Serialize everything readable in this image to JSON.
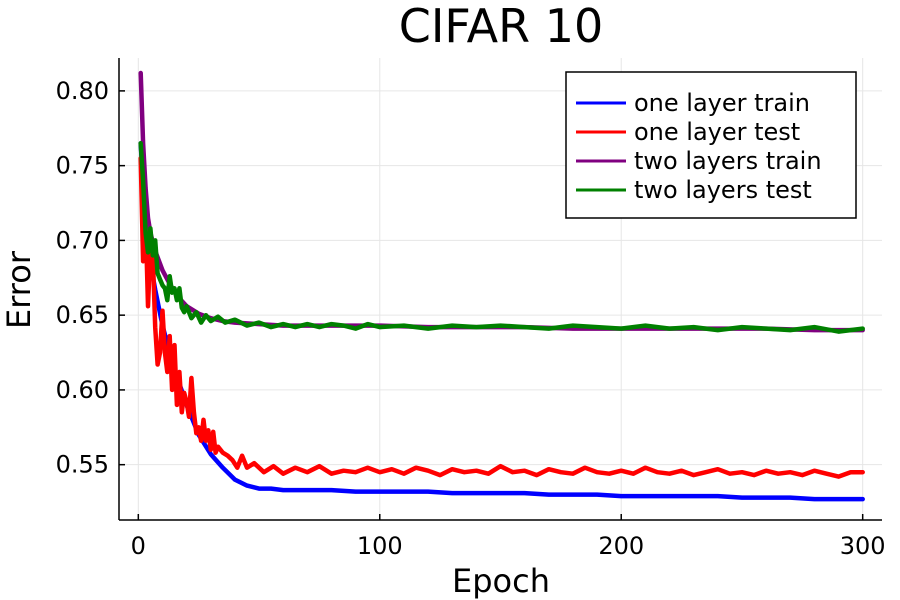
{
  "chart_data": {
    "type": "line",
    "title": "CIFAR 10",
    "xlabel": "Epoch",
    "ylabel": "Error",
    "xlim": [
      -8,
      308
    ],
    "ylim": [
      0.513,
      0.822
    ],
    "xticks": [
      0,
      100,
      200,
      300
    ],
    "yticks": [
      0.55,
      0.6,
      0.65,
      0.7,
      0.75,
      0.8
    ],
    "xtick_labels": [
      "0",
      "100",
      "200",
      "300"
    ],
    "ytick_labels": [
      "0.55",
      "0.60",
      "0.65",
      "0.70",
      "0.75",
      "0.80"
    ],
    "grid": true,
    "legend_position": "top-right",
    "series": [
      {
        "name": "one layer train",
        "color": "#0000ff",
        "x": [
          1,
          2,
          3,
          4,
          5,
          7,
          10,
          13,
          16,
          20,
          25,
          30,
          35,
          40,
          45,
          50,
          55,
          60,
          70,
          80,
          90,
          100,
          110,
          120,
          130,
          140,
          150,
          160,
          170,
          180,
          190,
          200,
          210,
          220,
          230,
          240,
          250,
          260,
          270,
          280,
          290,
          300
        ],
        "y": [
          0.765,
          0.735,
          0.712,
          0.698,
          0.685,
          0.667,
          0.643,
          0.625,
          0.609,
          0.59,
          0.57,
          0.557,
          0.548,
          0.54,
          0.536,
          0.534,
          0.534,
          0.533,
          0.533,
          0.533,
          0.532,
          0.532,
          0.532,
          0.532,
          0.531,
          0.531,
          0.531,
          0.531,
          0.53,
          0.53,
          0.53,
          0.529,
          0.529,
          0.529,
          0.529,
          0.529,
          0.528,
          0.528,
          0.528,
          0.527,
          0.527,
          0.527
        ]
      },
      {
        "name": "one layer test",
        "color": "#ff0000",
        "x": [
          1,
          2,
          3,
          4,
          5,
          6,
          7,
          8,
          9,
          10,
          11,
          12,
          13,
          14,
          15,
          16,
          17,
          18,
          19,
          20,
          21,
          22,
          23,
          24,
          25,
          26,
          27,
          28,
          29,
          30,
          31,
          32,
          33,
          35,
          37,
          39,
          41,
          43,
          45,
          48,
          52,
          56,
          60,
          65,
          70,
          75,
          80,
          85,
          90,
          95,
          100,
          105,
          110,
          115,
          120,
          125,
          130,
          135,
          140,
          145,
          150,
          155,
          160,
          165,
          170,
          175,
          180,
          185,
          190,
          195,
          200,
          205,
          210,
          215,
          220,
          225,
          230,
          235,
          240,
          245,
          250,
          255,
          260,
          265,
          270,
          275,
          280,
          285,
          290,
          295,
          300
        ],
        "y": [
          0.755,
          0.686,
          0.715,
          0.656,
          0.695,
          0.69,
          0.642,
          0.617,
          0.625,
          0.653,
          0.625,
          0.612,
          0.636,
          0.6,
          0.63,
          0.59,
          0.612,
          0.585,
          0.598,
          0.592,
          0.582,
          0.608,
          0.585,
          0.571,
          0.575,
          0.566,
          0.58,
          0.566,
          0.573,
          0.56,
          0.572,
          0.558,
          0.562,
          0.558,
          0.556,
          0.553,
          0.548,
          0.556,
          0.548,
          0.551,
          0.545,
          0.549,
          0.544,
          0.548,
          0.545,
          0.549,
          0.544,
          0.546,
          0.545,
          0.548,
          0.545,
          0.547,
          0.544,
          0.548,
          0.546,
          0.543,
          0.547,
          0.545,
          0.546,
          0.544,
          0.549,
          0.545,
          0.546,
          0.543,
          0.547,
          0.545,
          0.544,
          0.548,
          0.545,
          0.544,
          0.546,
          0.544,
          0.548,
          0.545,
          0.544,
          0.546,
          0.543,
          0.545,
          0.547,
          0.544,
          0.545,
          0.543,
          0.546,
          0.544,
          0.545,
          0.543,
          0.546,
          0.544,
          0.542,
          0.545,
          0.545
        ]
      },
      {
        "name": "two layers train",
        "color": "#800080",
        "x": [
          1,
          2,
          3,
          4,
          5,
          7,
          10,
          13,
          16,
          20,
          25,
          30,
          35,
          40,
          50,
          60,
          70,
          80,
          90,
          100,
          120,
          140,
          160,
          180,
          200,
          220,
          240,
          260,
          280,
          300
        ],
        "y": [
          0.812,
          0.765,
          0.735,
          0.715,
          0.705,
          0.693,
          0.68,
          0.671,
          0.663,
          0.656,
          0.651,
          0.648,
          0.646,
          0.645,
          0.644,
          0.643,
          0.643,
          0.643,
          0.643,
          0.643,
          0.642,
          0.642,
          0.642,
          0.641,
          0.641,
          0.641,
          0.641,
          0.641,
          0.64,
          0.64
        ]
      },
      {
        "name": "two layers test",
        "color": "#008000",
        "x": [
          1,
          2,
          3,
          4,
          5,
          6,
          7,
          8,
          9,
          10,
          11,
          12,
          13,
          14,
          15,
          16,
          17,
          18,
          19,
          20,
          22,
          24,
          26,
          28,
          30,
          33,
          36,
          40,
          45,
          50,
          55,
          60,
          65,
          70,
          75,
          80,
          85,
          90,
          95,
          100,
          110,
          120,
          130,
          140,
          150,
          160,
          170,
          180,
          190,
          200,
          210,
          220,
          230,
          240,
          250,
          260,
          270,
          280,
          290,
          300
        ],
        "y": [
          0.765,
          0.74,
          0.705,
          0.692,
          0.708,
          0.69,
          0.7,
          0.678,
          0.674,
          0.67,
          0.668,
          0.66,
          0.676,
          0.665,
          0.668,
          0.66,
          0.668,
          0.655,
          0.652,
          0.656,
          0.648,
          0.652,
          0.645,
          0.65,
          0.646,
          0.649,
          0.645,
          0.647,
          0.643,
          0.645,
          0.642,
          0.644,
          0.642,
          0.644,
          0.642,
          0.644,
          0.643,
          0.641,
          0.644,
          0.642,
          0.643,
          0.641,
          0.643,
          0.642,
          0.643,
          0.642,
          0.641,
          0.643,
          0.642,
          0.641,
          0.643,
          0.641,
          0.642,
          0.64,
          0.642,
          0.641,
          0.64,
          0.642,
          0.639,
          0.641
        ]
      }
    ]
  }
}
